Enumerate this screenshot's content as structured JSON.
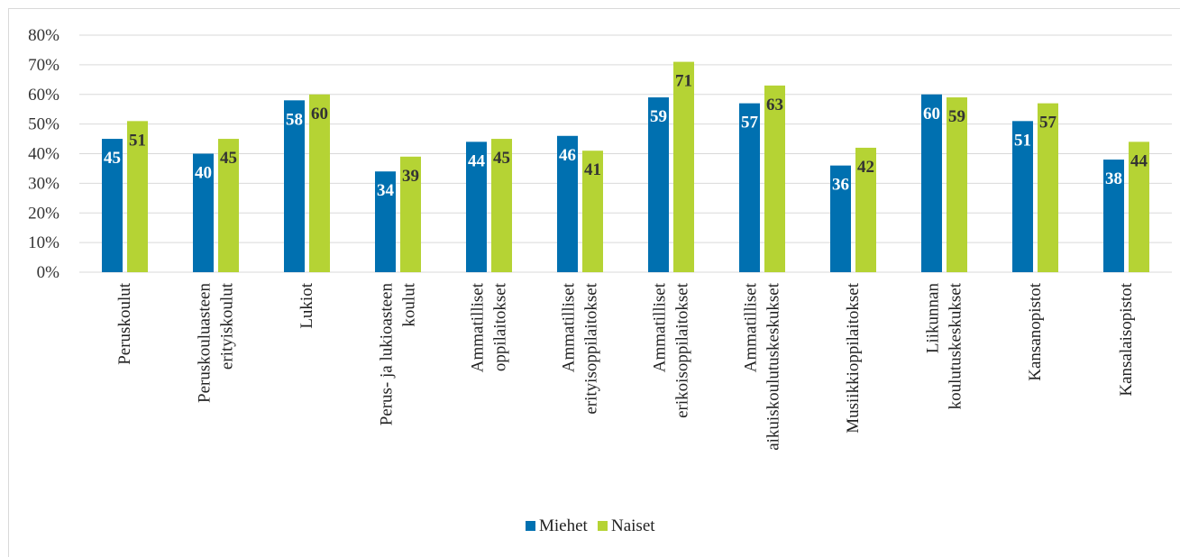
{
  "chart_data": {
    "type": "bar",
    "categories": [
      [
        "Peruskoulut"
      ],
      [
        "Peruskouluasteen",
        "erityiskoulut"
      ],
      [
        "Lukiot"
      ],
      [
        "Perus- ja lukioasteen",
        "koulut"
      ],
      [
        "Ammatilliset",
        "oppilaitokset"
      ],
      [
        "Ammatilliset",
        "erityisoppilaitokset"
      ],
      [
        "Ammatilliset",
        "erikoisoppilaitokset"
      ],
      [
        "Ammatilliset",
        "aikuiskoulutuskeskukset"
      ],
      [
        "Musiikkioppilaitokset"
      ],
      [
        "Liikunnan",
        "koulutuskeskukset"
      ],
      [
        "Kansanopistot"
      ],
      [
        "Kansalaisopistot"
      ]
    ],
    "series": [
      {
        "name": "Miehet",
        "color": "#0070b0",
        "label_color": "#ffffff",
        "values": [
          45,
          40,
          58,
          34,
          44,
          46,
          59,
          57,
          36,
          60,
          51,
          38
        ],
        "labels": [
          "45",
          "40",
          "58",
          "34",
          "44",
          "46",
          "59",
          "57",
          "36",
          "60",
          "51",
          "38"
        ]
      },
      {
        "name": "Naiset",
        "color": "#b5d334",
        "label_color": "#333333",
        "values": [
          51,
          45,
          60,
          39,
          45,
          41,
          71,
          63,
          42,
          59,
          57,
          44
        ],
        "labels": [
          "51",
          "45",
          "60",
          "39",
          "45",
          "41",
          "71",
          "63",
          "42",
          "59",
          "57",
          "44"
        ]
      }
    ],
    "yticks": [
      "0%",
      "10%",
      "20%",
      "30%",
      "40%",
      "50%",
      "60%",
      "70%",
      "80%"
    ],
    "ylim": [
      0,
      80
    ],
    "grid": true,
    "legend": "bottom"
  }
}
